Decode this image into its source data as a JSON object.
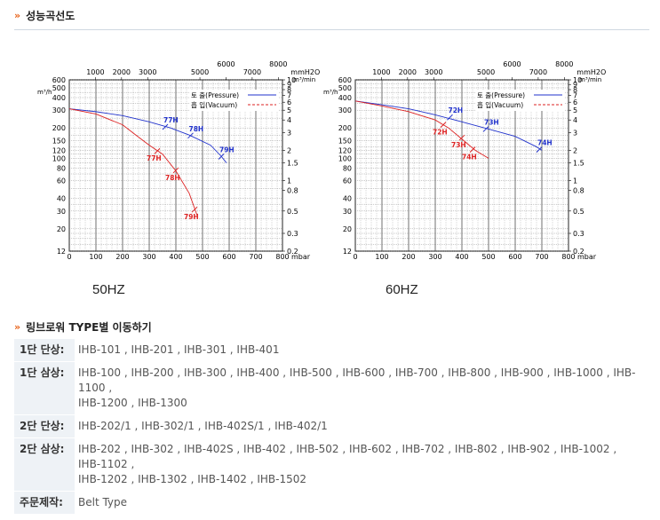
{
  "sections": {
    "curve_title": "성능곡선도",
    "models_title": "링브로워 TYPE별 이동하기",
    "arrow": "»"
  },
  "captions": [
    "50HZ",
    "60HZ"
  ],
  "chart_data": [
    {
      "type": "line",
      "title": "50HZ",
      "x_unit": "mbar",
      "x_ticks": [
        "100",
        "200",
        "300",
        "400",
        "500",
        "600",
        "700",
        "800"
      ],
      "x_top_unit": "mmH2O",
      "x_top_ticks": [
        "1000",
        "2000",
        "3000",
        "5000",
        "6000",
        "7000",
        "8000"
      ],
      "y_unit": "m³/h",
      "y_ticks": [
        "12",
        "20",
        "30",
        "40",
        "60",
        "80",
        "100",
        "120",
        "150",
        "200",
        "300",
        "400",
        "500",
        "600"
      ],
      "y_right_unit": "m³/min",
      "y_right_ticks": [
        "0.2",
        "0.3",
        "0.5",
        "0.8",
        "1",
        "1.5",
        "2",
        "3",
        "4",
        "5",
        "6",
        "7",
        "8",
        "9",
        "10"
      ],
      "legend": {
        "pressure": "토 출(Pressure)",
        "vacuum": "흡 입(Vacuum)",
        "position": "top-right"
      },
      "series": [
        {
          "name": "토 출(Pressure)",
          "color": "#2233cc",
          "points": [
            [
              0,
              310
            ],
            [
              100,
              290
            ],
            [
              200,
              265
            ],
            [
              300,
              230
            ],
            [
              380,
              200
            ],
            [
              450,
              170
            ],
            [
              530,
              135
            ],
            [
              570,
              105
            ],
            [
              590,
              90
            ]
          ],
          "markers": [
            {
              "label": "77H",
              "x": 360,
              "y": 205
            },
            {
              "label": "78H",
              "x": 455,
              "y": 168
            },
            {
              "label": "79H",
              "x": 570,
              "y": 104
            }
          ]
        },
        {
          "name": "흡 입(Vacuum)",
          "color": "#dd2222",
          "points": [
            [
              0,
              310
            ],
            [
              100,
              275
            ],
            [
              200,
              215
            ],
            [
              250,
              170
            ],
            [
              300,
              135
            ],
            [
              350,
              110
            ],
            [
              400,
              75
            ],
            [
              450,
              45
            ],
            [
              480,
              27
            ]
          ],
          "markers": [
            {
              "label": "77H",
              "x": 330,
              "y": 118
            },
            {
              "label": "78H",
              "x": 400,
              "y": 76
            },
            {
              "label": "79H",
              "x": 470,
              "y": 31
            }
          ]
        }
      ]
    },
    {
      "type": "line",
      "title": "60HZ",
      "x_unit": "mbar",
      "x_ticks": [
        "100",
        "200",
        "300",
        "400",
        "500",
        "600",
        "700",
        "800"
      ],
      "x_top_unit": "mmH2O",
      "x_top_ticks": [
        "1000",
        "2000",
        "3000",
        "5000",
        "6000",
        "7000",
        "8000"
      ],
      "y_unit": "m³/h",
      "y_ticks": [
        "12",
        "20",
        "30",
        "40",
        "60",
        "80",
        "100",
        "120",
        "150",
        "200",
        "300",
        "400",
        "500",
        "600"
      ],
      "y_right_unit": "m³/min",
      "y_right_ticks": [
        "0.2",
        "0.3",
        "0.5",
        "0.8",
        "1",
        "1.5",
        "2",
        "3",
        "4",
        "5",
        "6",
        "7",
        "8",
        "9",
        "10"
      ],
      "legend": {
        "pressure": "토 출(Pressure)",
        "vacuum": "흡 입(Vacuum)",
        "position": "top-right"
      },
      "series": [
        {
          "name": "토 출(Pressure)",
          "color": "#2233cc",
          "points": [
            [
              0,
              370
            ],
            [
              100,
              340
            ],
            [
              200,
              310
            ],
            [
              300,
              270
            ],
            [
              400,
              230
            ],
            [
              500,
              195
            ],
            [
              600,
              165
            ],
            [
              680,
              130
            ],
            [
              700,
              120
            ]
          ],
          "markers": [
            {
              "label": "72H",
              "x": 355,
              "y": 255
            },
            {
              "label": "73H",
              "x": 490,
              "y": 195
            },
            {
              "label": "74H",
              "x": 690,
              "y": 122
            }
          ]
        },
        {
          "name": "흡 입(Vacuum)",
          "color": "#dd2222",
          "points": [
            [
              0,
              370
            ],
            [
              100,
              330
            ],
            [
              200,
              290
            ],
            [
              300,
              240
            ],
            [
              350,
              200
            ],
            [
              400,
              155
            ],
            [
              450,
              120
            ],
            [
              500,
              100
            ]
          ],
          "markers": [
            {
              "label": "72H",
              "x": 330,
              "y": 215
            },
            {
              "label": "73H",
              "x": 400,
              "y": 160
            },
            {
              "label": "74H",
              "x": 440,
              "y": 122
            }
          ]
        }
      ]
    }
  ],
  "models": [
    {
      "label": "1단 단상:",
      "lines": [
        "IHB-101 , IHB-201 , IHB-301 , IHB-401"
      ]
    },
    {
      "label": "1단 삼상:",
      "lines": [
        "IHB-100 , IHB-200 , IHB-300 , IHB-400 , IHB-500 , IHB-600 , IHB-700 , IHB-800 , IHB-900 , IHB-1000 , IHB-",
        "1100 ,",
        "IHB-1200 , IHB-1300"
      ]
    },
    {
      "label": "2단 단상:",
      "lines": [
        "IHB-202/1 , IHB-302/1 , IHB-402S/1 , IHB-402/1"
      ]
    },
    {
      "label": "2단 삼상:",
      "lines": [
        "IHB-202 , IHB-302 , IHB-402S , IHB-402 , IHB-502 , IHB-602 , IHB-702 , IHB-802 , IHB-902 , IHB-1002 ,",
        "IHB-1102 ,",
        "IHB-1202 , IHB-1302 , IHB-1402 , IHB-1502"
      ]
    },
    {
      "label": "주문제작:",
      "lines": [
        "Belt Type"
      ]
    }
  ]
}
